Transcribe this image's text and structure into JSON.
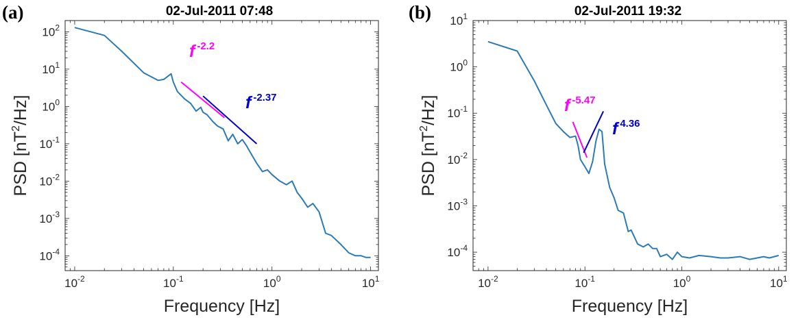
{
  "chart_data": [
    {
      "type": "line",
      "panel_label": "(a)",
      "title": "02-Jul-2011 07:48",
      "xlabel": "Frequency [Hz]",
      "ylabel_main": "PSD [nT",
      "ylabel_sup": "2",
      "ylabel_tail": "/Hz]",
      "xscale": "log",
      "yscale": "log",
      "xlim": [
        0.008,
        12
      ],
      "ylim": [
        4e-05,
        200
      ],
      "x_ticks": [
        {
          "base": "10",
          "exp": "-2",
          "value": 0.01
        },
        {
          "base": "10",
          "exp": "-1",
          "value": 0.1
        },
        {
          "base": "10",
          "exp": "0",
          "value": 1
        },
        {
          "base": "10",
          "exp": "1",
          "value": 10
        }
      ],
      "y_ticks": [
        {
          "base": "10",
          "exp": "-4",
          "value": 0.0001
        },
        {
          "base": "10",
          "exp": "-3",
          "value": 0.001
        },
        {
          "base": "10",
          "exp": "-2",
          "value": 0.01
        },
        {
          "base": "10",
          "exp": "-1",
          "value": 0.1
        },
        {
          "base": "10",
          "exp": "0",
          "value": 1
        },
        {
          "base": "10",
          "exp": "1",
          "value": 10
        },
        {
          "base": "10",
          "exp": "2",
          "value": 100
        }
      ],
      "series": [
        {
          "color": "#2a7ab8",
          "x": [
            0.01,
            0.02,
            0.03,
            0.05,
            0.07,
            0.08,
            0.095,
            0.1,
            0.11,
            0.13,
            0.15,
            0.17,
            0.19,
            0.2,
            0.22,
            0.25,
            0.28,
            0.32,
            0.36,
            0.4,
            0.45,
            0.5,
            0.55,
            0.6,
            0.7,
            0.8,
            0.9,
            1.0,
            1.2,
            1.4,
            1.6,
            1.8,
            2.0,
            2.3,
            2.6,
            3.0,
            3.5,
            4.0,
            5.0,
            6.0,
            7.0,
            8.0,
            9.0,
            10.0
          ],
          "y": [
            130,
            80,
            30,
            8,
            5,
            5.3,
            7.5,
            4.5,
            2.5,
            1.6,
            1.2,
            0.75,
            0.95,
            0.7,
            0.6,
            0.4,
            0.3,
            0.25,
            0.12,
            0.18,
            0.1,
            0.13,
            0.09,
            0.06,
            0.03,
            0.018,
            0.02,
            0.015,
            0.01,
            0.008,
            0.01,
            0.005,
            0.0035,
            0.002,
            0.0025,
            0.0015,
            0.0004,
            0.00035,
            0.0002,
            0.00012,
            0.0001,
            0.0001,
            9e-05,
            9e-05
          ]
        }
      ],
      "fits": [
        {
          "label": "f",
          "exponent": "-2.2",
          "color": "#ff00ff",
          "x": [
            0.12,
            0.33
          ],
          "y": [
            4.5,
            0.5
          ]
        },
        {
          "label": "f",
          "exponent": "-2.37",
          "color": "#0000cd",
          "x": [
            0.2,
            0.7
          ],
          "y": [
            1.9,
            0.1
          ]
        }
      ]
    },
    {
      "type": "line",
      "panel_label": "(b)",
      "title": "02-Jul-2011 19:32",
      "xlabel": "Frequency [Hz]",
      "ylabel_main": "PSD [nT",
      "ylabel_sup": "2",
      "ylabel_tail": "/Hz]",
      "xscale": "log",
      "yscale": "log",
      "xlim": [
        0.007,
        12
      ],
      "ylim": [
        4e-05,
        10
      ],
      "x_ticks": [
        {
          "base": "10",
          "exp": "-2",
          "value": 0.01
        },
        {
          "base": "10",
          "exp": "-1",
          "value": 0.1
        },
        {
          "base": "10",
          "exp": "0",
          "value": 1
        },
        {
          "base": "10",
          "exp": "1",
          "value": 10
        }
      ],
      "y_ticks": [
        {
          "base": "10",
          "exp": "-4",
          "value": 0.0001
        },
        {
          "base": "10",
          "exp": "-3",
          "value": 0.001
        },
        {
          "base": "10",
          "exp": "-2",
          "value": 0.01
        },
        {
          "base": "10",
          "exp": "-1",
          "value": 0.1
        },
        {
          "base": "10",
          "exp": "0",
          "value": 1
        },
        {
          "base": "10",
          "exp": "1",
          "value": 10
        }
      ],
      "series": [
        {
          "color": "#2a7ab8",
          "x": [
            0.01,
            0.02,
            0.03,
            0.04,
            0.05,
            0.06,
            0.07,
            0.08,
            0.085,
            0.09,
            0.1,
            0.11,
            0.12,
            0.13,
            0.14,
            0.15,
            0.16,
            0.18,
            0.2,
            0.22,
            0.25,
            0.28,
            0.3,
            0.35,
            0.4,
            0.45,
            0.5,
            0.55,
            0.6,
            0.7,
            0.8,
            0.9,
            1.0,
            1.2,
            1.5,
            2.0,
            2.5,
            3.0,
            4.0,
            5.0,
            6.0,
            7.0,
            8.0,
            9.0,
            10.0
          ],
          "y": [
            3.5,
            2.2,
            0.5,
            0.15,
            0.06,
            0.04,
            0.03,
            0.032,
            0.02,
            0.01,
            0.007,
            0.005,
            0.009,
            0.025,
            0.045,
            0.04,
            0.008,
            0.0025,
            0.0015,
            0.0008,
            0.0007,
            0.00028,
            0.0003,
            0.00015,
            0.00013,
            0.00015,
            0.00012,
            0.00012,
            8e-05,
            9e-05,
            7e-05,
            0.0001,
            8e-05,
            7.5e-05,
            8.5e-05,
            8e-05,
            7.5e-05,
            7.5e-05,
            8e-05,
            7e-05,
            7.5e-05,
            8e-05,
            7.5e-05,
            8e-05,
            8.5e-05
          ]
        }
      ],
      "fits": [
        {
          "label": "f",
          "exponent": "-5.47",
          "color": "#ff00ff",
          "x": [
            0.075,
            0.105
          ],
          "y": [
            0.065,
            0.011
          ]
        },
        {
          "label": "f",
          "exponent": "4.36",
          "color": "#0000cd",
          "x": [
            0.097,
            0.155
          ],
          "y": [
            0.014,
            0.11
          ]
        }
      ]
    }
  ]
}
